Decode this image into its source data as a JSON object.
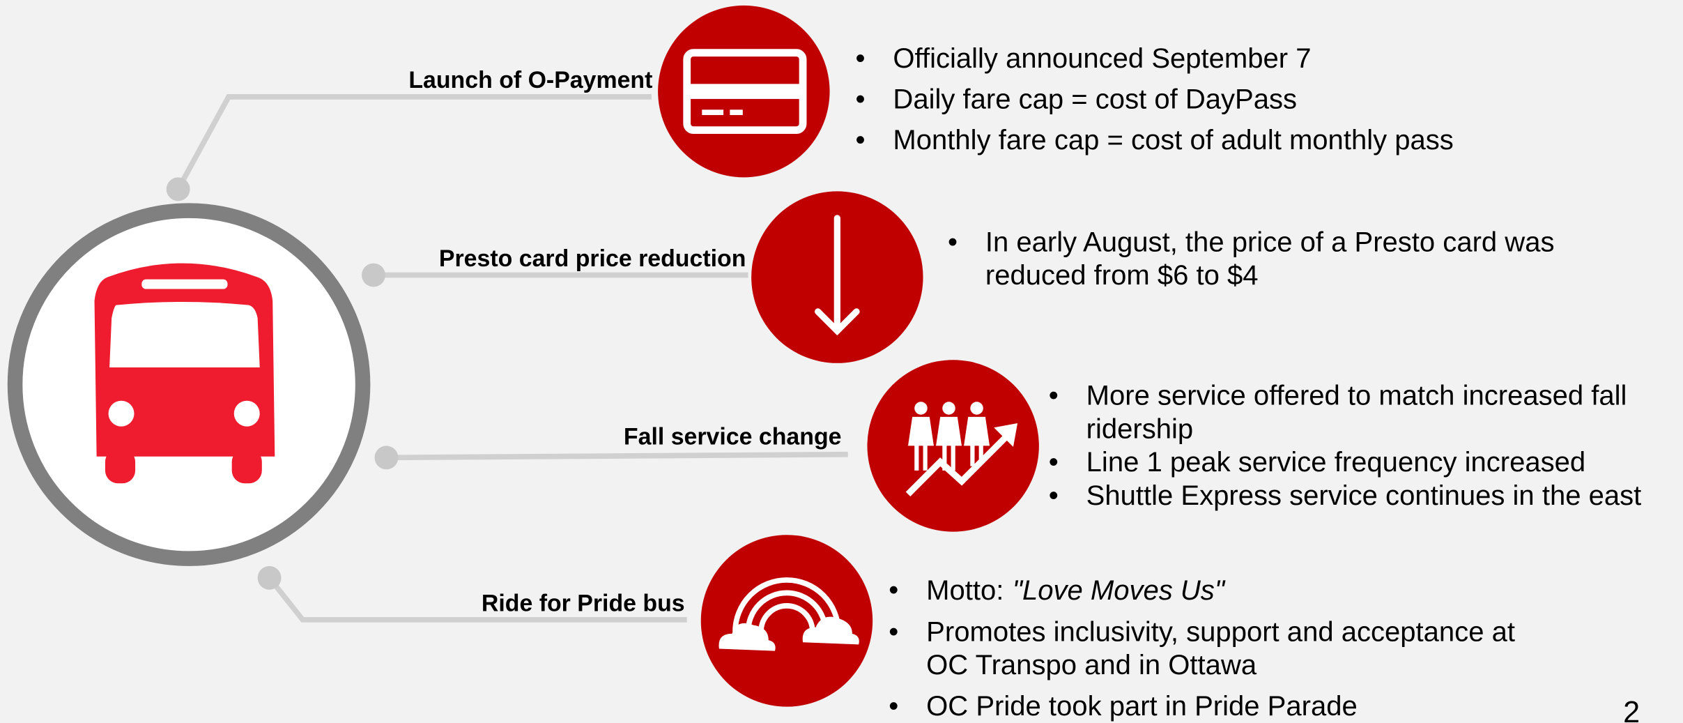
{
  "items": [
    {
      "label": "Launch of O-Payment",
      "bullets": [
        [
          "Officially announced September 7"
        ],
        [
          "Daily fare cap = cost of DayPass"
        ],
        [
          "Monthly fare cap = cost of adult monthly pass"
        ]
      ]
    },
    {
      "label": "Presto card price reduction",
      "bullets": [
        [
          "In early August, the price of a Presto card was",
          "reduced from $6 to $4"
        ]
      ]
    },
    {
      "label": "Fall service change",
      "bullets": [
        [
          "More service offered to match increased fall",
          "ridership"
        ],
        [
          "Line 1 peak service frequency increased"
        ],
        [
          "Shuttle Express service continues in the east"
        ]
      ]
    },
    {
      "label": "Ride for Pride bus",
      "motto": {
        "text": "Motto:",
        "emphasis": "\"Love Moves Us\""
      },
      "bullets": [
        [
          "Promotes inclusivity, support and acceptance at",
          "OC Transpo and in Ottawa"
        ],
        [
          "OC Pride took part in Pride Parade"
        ]
      ]
    }
  ],
  "bullet_symbol": "•",
  "page_number": "2"
}
